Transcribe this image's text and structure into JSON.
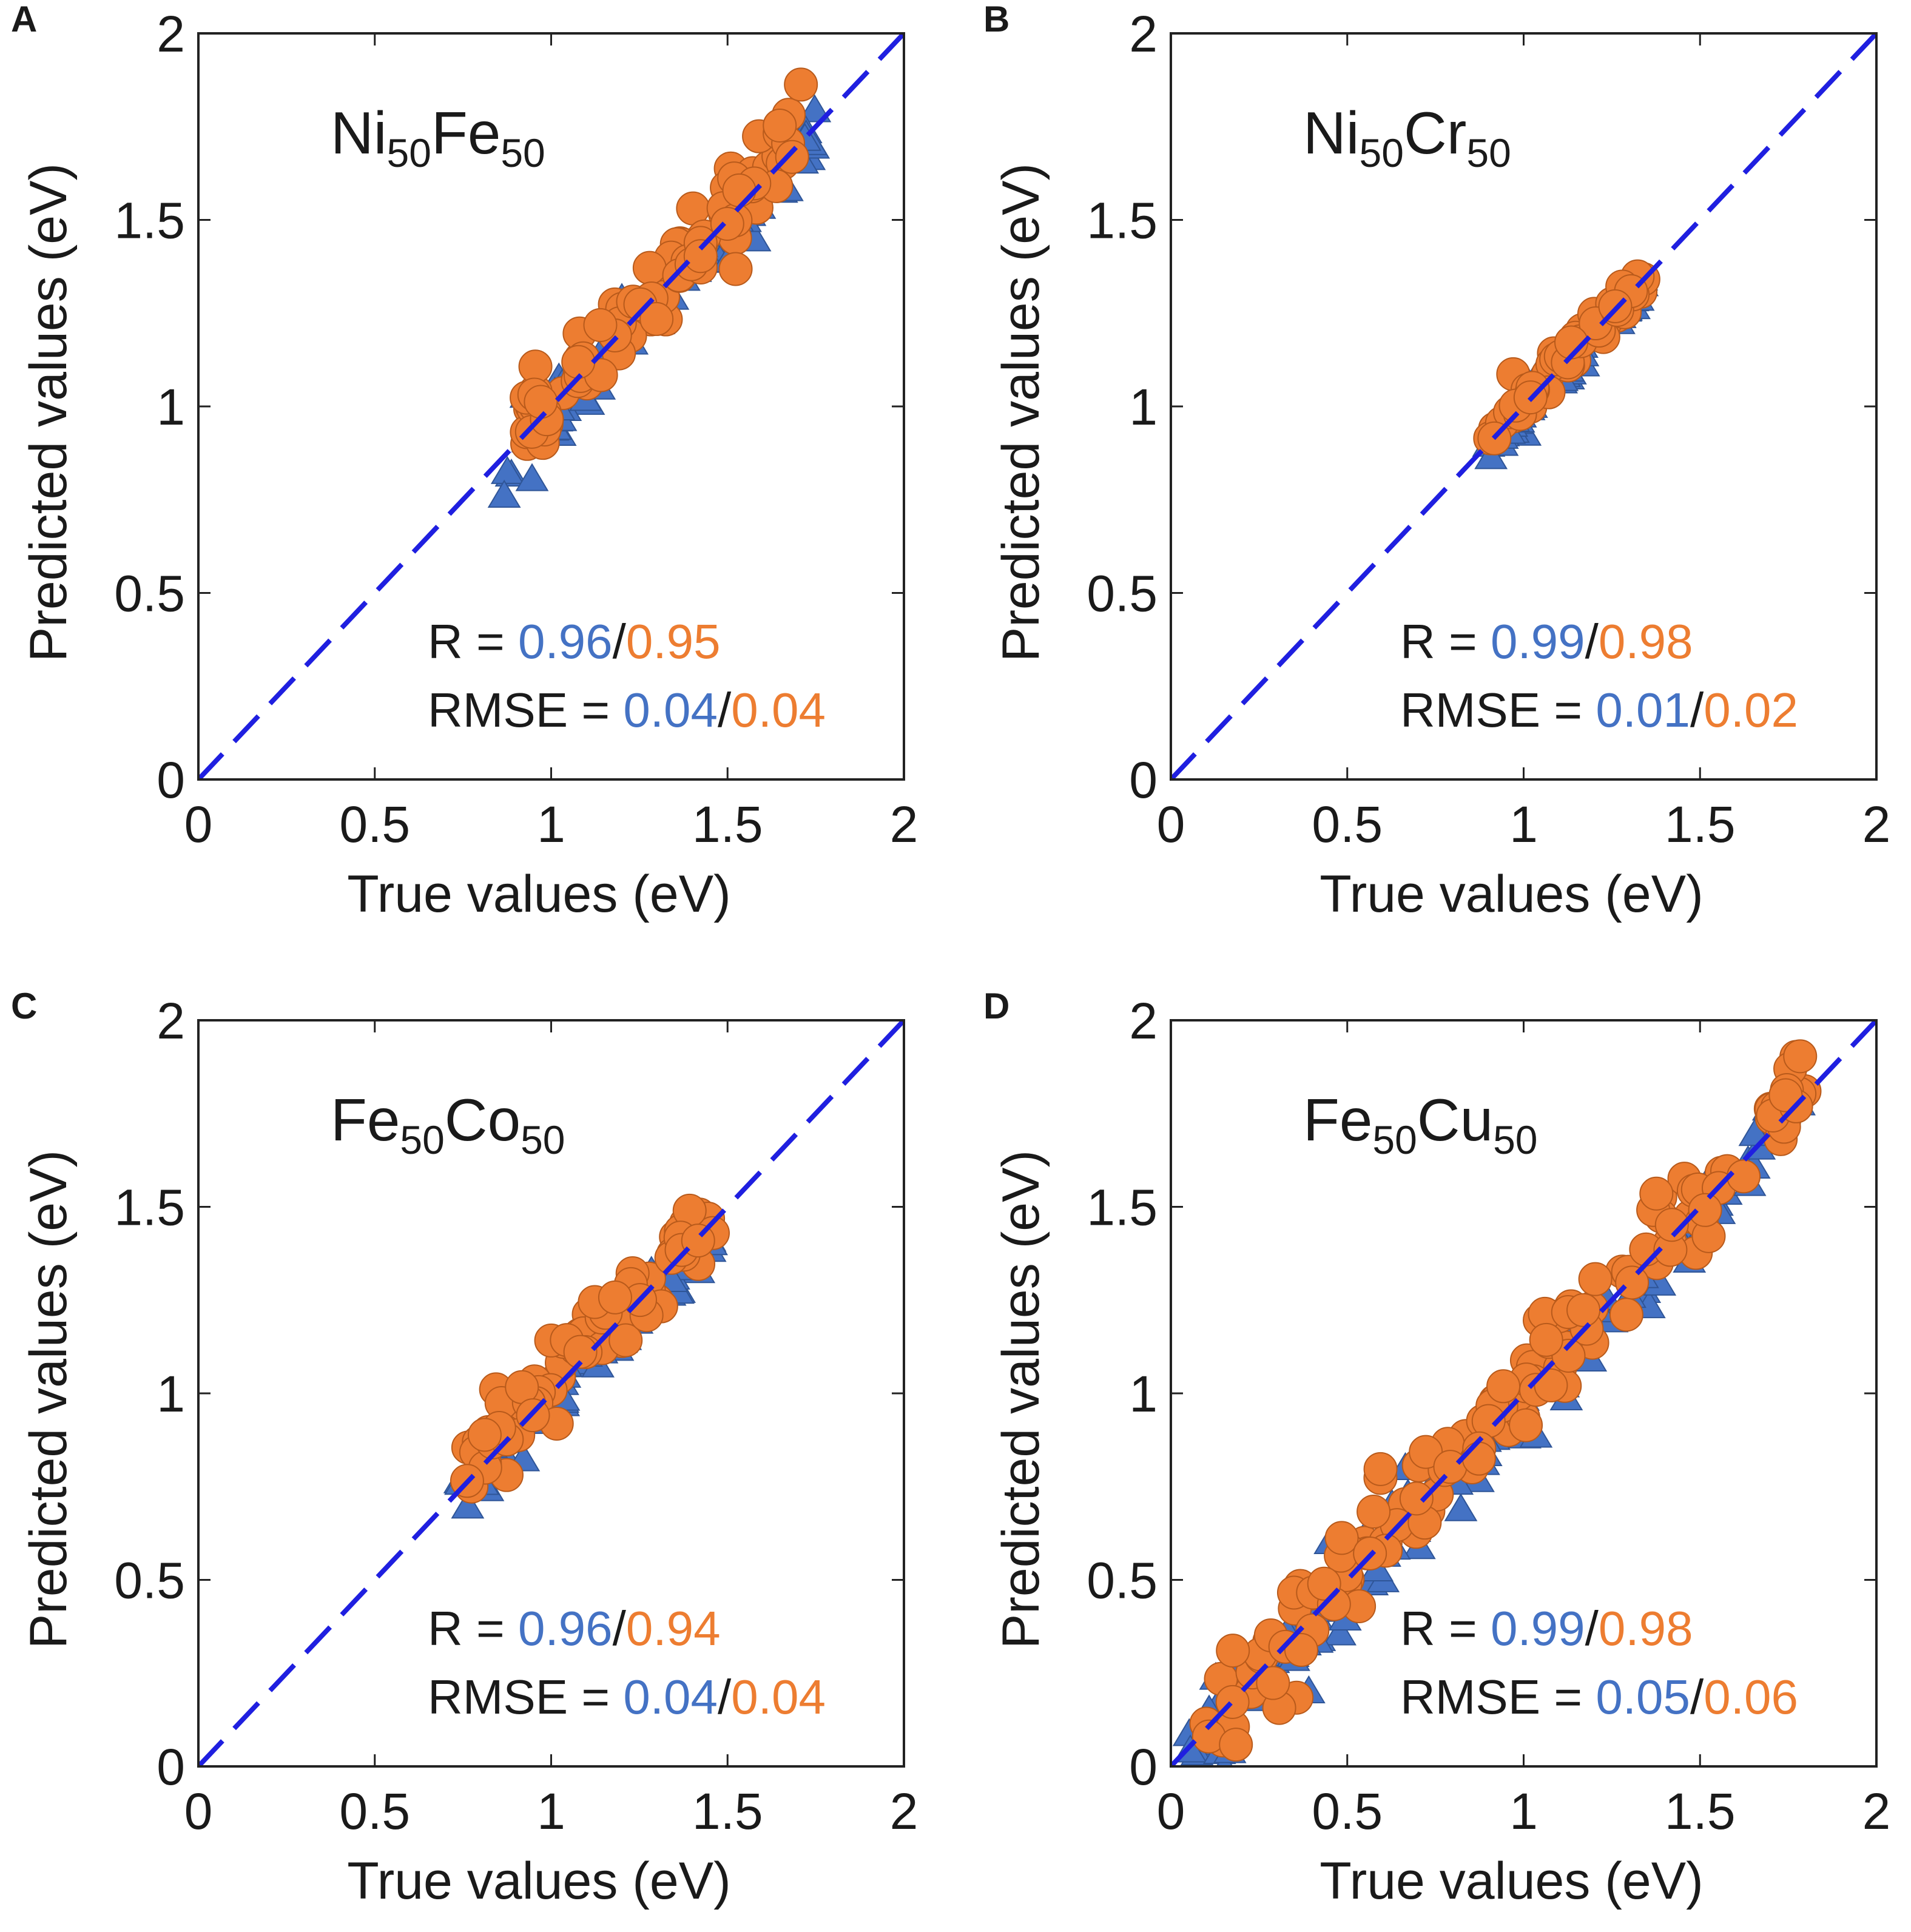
{
  "figure": {
    "background": "#ffffff"
  },
  "colors": {
    "train": "#4472c4",
    "train_edge": "#2f5597",
    "test": "#ed7d31",
    "test_edge": "#b85a1b",
    "identity_line": "#1f1fe0",
    "text": "#1a1a1a"
  },
  "chart_data": [
    {
      "type": "scatter",
      "panel_label": "A",
      "alloy": {
        "el1": "Ni",
        "sub1": "50",
        "el2": "Fe",
        "sub2": "50"
      },
      "xlabel": "True values (eV)",
      "ylabel": "Predicted values (eV)",
      "xlim": [
        0,
        2
      ],
      "ylim": [
        0,
        2
      ],
      "xticks": [
        "0",
        "0.5",
        "1",
        "1.5",
        "2"
      ],
      "yticks": [
        "0",
        "0.5",
        "1",
        "1.5",
        "2"
      ],
      "grid": false,
      "stats": {
        "r_label": "R =",
        "r_train": "0.96",
        "r_test": "0.95",
        "rmse_label": "RMSE =",
        "rmse_train": "0.04",
        "rmse_test": "0.04",
        "sep": "/"
      },
      "series": [
        {
          "name": "train",
          "marker": "triangle",
          "range": [
            0.86,
            1.76
          ],
          "offset": -0.02,
          "spread": 0.05,
          "n": 80
        },
        {
          "name": "test",
          "marker": "circle",
          "range": [
            0.9,
            1.72
          ],
          "offset": 0.02,
          "spread": 0.06,
          "n": 90
        }
      ]
    },
    {
      "type": "scatter",
      "panel_label": "B",
      "alloy": {
        "el1": "Ni",
        "sub1": "50",
        "el2": "Cr",
        "sub2": "50"
      },
      "xlabel": "True values (eV)",
      "ylabel": "Predicted values (eV)",
      "xlim": [
        0,
        2
      ],
      "ylim": [
        0,
        2
      ],
      "xticks": [
        "0",
        "0.5",
        "1",
        "1.5",
        "2"
      ],
      "yticks": [
        "0",
        "0.5",
        "1",
        "1.5",
        "2"
      ],
      "grid": false,
      "stats": {
        "r_label": "R =",
        "r_train": "0.99",
        "r_test": "0.98",
        "rmse_label": "RMSE =",
        "rmse_train": "0.01",
        "rmse_test": "0.02",
        "sep": "/"
      },
      "series": [
        {
          "name": "train",
          "marker": "triangle",
          "range": [
            0.9,
            1.35
          ],
          "offset": -0.015,
          "spread": 0.025,
          "n": 60
        },
        {
          "name": "test",
          "marker": "circle",
          "range": [
            0.9,
            1.34
          ],
          "offset": 0.01,
          "spread": 0.025,
          "n": 55
        }
      ]
    },
    {
      "type": "scatter",
      "panel_label": "C",
      "alloy": {
        "el1": "Fe",
        "sub1": "50",
        "el2": "Co",
        "sub2": "50"
      },
      "xlabel": "True values (eV)",
      "ylabel": "Predicted values (eV)",
      "xlim": [
        0,
        2
      ],
      "ylim": [
        0,
        2
      ],
      "xticks": [
        "0",
        "0.5",
        "1",
        "1.5",
        "2"
      ],
      "yticks": [
        "0",
        "0.5",
        "1",
        "1.5",
        "2"
      ],
      "grid": false,
      "stats": {
        "r_label": "R =",
        "r_train": "0.96",
        "r_test": "0.94",
        "rmse_label": "RMSE =",
        "rmse_train": "0.04",
        "rmse_test": "0.04",
        "sep": "/"
      },
      "series": [
        {
          "name": "train",
          "marker": "triangle",
          "range": [
            0.74,
            1.46
          ],
          "offset": -0.025,
          "spread": 0.045,
          "n": 75
        },
        {
          "name": "test",
          "marker": "circle",
          "range": [
            0.76,
            1.48
          ],
          "offset": 0.03,
          "spread": 0.055,
          "n": 85
        }
      ]
    },
    {
      "type": "scatter",
      "panel_label": "D",
      "alloy": {
        "el1": "Fe",
        "sub1": "50",
        "el2": "Cu",
        "sub2": "50"
      },
      "xlabel": "True values (eV)",
      "ylabel": "Predicted values (eV)",
      "xlim": [
        0,
        2
      ],
      "ylim": [
        0,
        2
      ],
      "xticks": [
        "0",
        "0.5",
        "1",
        "1.5",
        "2"
      ],
      "yticks": [
        "0",
        "0.5",
        "1",
        "1.5",
        "2"
      ],
      "grid": false,
      "stats": {
        "r_label": "R =",
        "r_train": "0.99",
        "r_test": "0.98",
        "rmse_label": "RMSE =",
        "rmse_train": "0.05",
        "rmse_test": "0.06",
        "sep": "/"
      },
      "series": [
        {
          "name": "train",
          "marker": "triangle",
          "range": [
            0.05,
            1.8
          ],
          "offset": -0.03,
          "spread": 0.06,
          "n": 130
        },
        {
          "name": "test",
          "marker": "circle",
          "range": [
            0.1,
            1.82
          ],
          "offset": 0.02,
          "spread": 0.065,
          "n": 140
        }
      ]
    }
  ]
}
